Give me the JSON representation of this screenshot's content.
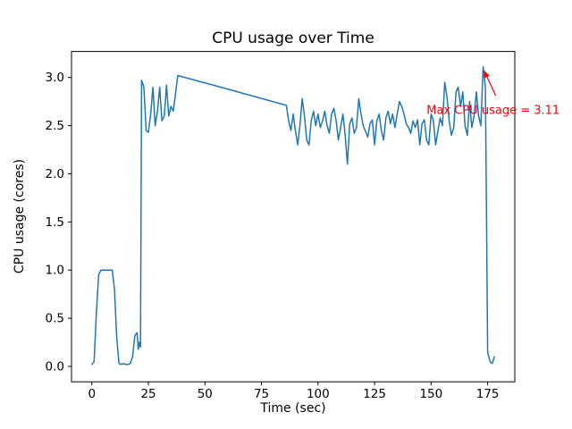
{
  "chart_data": {
    "type": "line",
    "title": "CPU usage over Time",
    "xlabel": "Time (sec)",
    "ylabel": "CPU usage (cores)",
    "xlim": [
      -9,
      187
    ],
    "ylim": [
      -0.16,
      3.27
    ],
    "xticks": [
      0,
      25,
      50,
      75,
      100,
      125,
      150,
      175
    ],
    "xtick_labels": [
      "0",
      "25",
      "50",
      "75",
      "100",
      "125",
      "150",
      "175"
    ],
    "yticks": [
      0.0,
      0.5,
      1.0,
      1.5,
      2.0,
      2.5,
      3.0
    ],
    "ytick_labels": [
      "0.0",
      "0.5",
      "1.0",
      "1.5",
      "2.0",
      "2.5",
      "3.0"
    ],
    "grid": false,
    "legend": "none",
    "line_color": "#1f77b4",
    "background_color": "#ffffff",
    "axes_color": "#000000",
    "series": [
      {
        "name": "CPU usage",
        "points": [
          [
            0,
            0.02
          ],
          [
            1,
            0.05
          ],
          [
            2,
            0.55
          ],
          [
            3,
            0.95
          ],
          [
            4,
            1.0
          ],
          [
            5,
            1.0
          ],
          [
            6,
            1.0
          ],
          [
            7,
            1.0
          ],
          [
            8,
            1.0
          ],
          [
            9,
            1.0
          ],
          [
            10,
            0.8
          ],
          [
            11,
            0.3
          ],
          [
            12,
            0.03
          ],
          [
            13,
            0.02
          ],
          [
            14,
            0.03
          ],
          [
            15,
            0.02
          ],
          [
            16,
            0.02
          ],
          [
            17,
            0.03
          ],
          [
            18,
            0.1
          ],
          [
            19,
            0.32
          ],
          [
            20,
            0.35
          ],
          [
            20.5,
            0.18
          ],
          [
            21,
            0.25
          ],
          [
            21.5,
            0.2
          ],
          [
            22,
            2.97
          ],
          [
            23,
            2.9
          ],
          [
            24,
            2.45
          ],
          [
            25,
            2.43
          ],
          [
            26,
            2.62
          ],
          [
            27,
            2.9
          ],
          [
            28,
            2.5
          ],
          [
            29,
            2.65
          ],
          [
            30,
            2.9
          ],
          [
            31,
            2.55
          ],
          [
            32,
            2.6
          ],
          [
            33,
            2.92
          ],
          [
            34,
            2.6
          ],
          [
            35,
            2.7
          ],
          [
            36,
            2.65
          ],
          [
            38,
            3.02
          ],
          [
            60,
            2.88
          ],
          [
            86,
            2.71
          ],
          [
            87,
            2.55
          ],
          [
            88,
            2.45
          ],
          [
            89,
            2.62
          ],
          [
            90,
            2.45
          ],
          [
            91,
            2.3
          ],
          [
            92,
            2.5
          ],
          [
            93,
            2.78
          ],
          [
            94,
            2.6
          ],
          [
            95,
            2.35
          ],
          [
            96,
            2.3
          ],
          [
            97,
            2.55
          ],
          [
            98,
            2.65
          ],
          [
            99,
            2.5
          ],
          [
            100,
            2.62
          ],
          [
            101,
            2.48
          ],
          [
            102,
            2.55
          ],
          [
            103,
            2.65
          ],
          [
            104,
            2.5
          ],
          [
            105,
            2.42
          ],
          [
            106,
            2.62
          ],
          [
            107,
            2.68
          ],
          [
            108,
            2.55
          ],
          [
            109,
            2.35
          ],
          [
            110,
            2.48
          ],
          [
            111,
            2.62
          ],
          [
            112,
            2.4
          ],
          [
            113,
            2.1
          ],
          [
            114,
            2.52
          ],
          [
            115,
            2.58
          ],
          [
            116,
            2.42
          ],
          [
            117,
            2.48
          ],
          [
            118,
            2.78
          ],
          [
            119,
            2.62
          ],
          [
            120,
            2.5
          ],
          [
            121,
            2.44
          ],
          [
            122,
            2.38
          ],
          [
            123,
            2.52
          ],
          [
            124,
            2.56
          ],
          [
            125,
            2.3
          ],
          [
            126,
            2.55
          ],
          [
            127,
            2.62
          ],
          [
            128,
            2.45
          ],
          [
            129,
            2.35
          ],
          [
            130,
            2.58
          ],
          [
            131,
            2.65
          ],
          [
            132,
            2.52
          ],
          [
            133,
            2.62
          ],
          [
            134,
            2.48
          ],
          [
            135,
            2.62
          ],
          [
            136,
            2.75
          ],
          [
            137,
            2.7
          ],
          [
            138,
            2.62
          ],
          [
            139,
            2.52
          ],
          [
            140,
            2.48
          ],
          [
            141,
            2.42
          ],
          [
            142,
            2.55
          ],
          [
            143,
            2.48
          ],
          [
            144,
            2.56
          ],
          [
            145,
            2.3
          ],
          [
            146,
            2.52
          ],
          [
            147,
            2.56
          ],
          [
            148,
            2.35
          ],
          [
            149,
            2.3
          ],
          [
            150,
            2.62
          ],
          [
            151,
            2.55
          ],
          [
            152,
            2.3
          ],
          [
            153,
            2.45
          ],
          [
            154,
            2.58
          ],
          [
            155,
            2.5
          ],
          [
            156,
            2.95
          ],
          [
            157,
            2.8
          ],
          [
            158,
            2.55
          ],
          [
            159,
            2.4
          ],
          [
            160,
            2.48
          ],
          [
            161,
            2.85
          ],
          [
            162,
            2.9
          ],
          [
            163,
            2.7
          ],
          [
            164,
            2.85
          ],
          [
            165,
            2.5
          ],
          [
            166,
            2.4
          ],
          [
            167,
            2.75
          ],
          [
            168,
            2.48
          ],
          [
            169,
            2.6
          ],
          [
            170,
            2.85
          ],
          [
            171,
            2.6
          ],
          [
            172,
            2.5
          ],
          [
            173,
            3.11
          ],
          [
            174,
            2.9
          ],
          [
            174.5,
            1.5
          ],
          [
            175,
            0.15
          ],
          [
            176,
            0.05
          ],
          [
            177,
            0.03
          ],
          [
            178,
            0.1
          ]
        ]
      }
    ],
    "annotation": {
      "text": "Max CPU usage = 3.11",
      "max_value": 3.11,
      "xy": [
        173,
        3.11
      ],
      "xytext": [
        148,
        2.62
      ],
      "color": "#ff0000"
    }
  }
}
